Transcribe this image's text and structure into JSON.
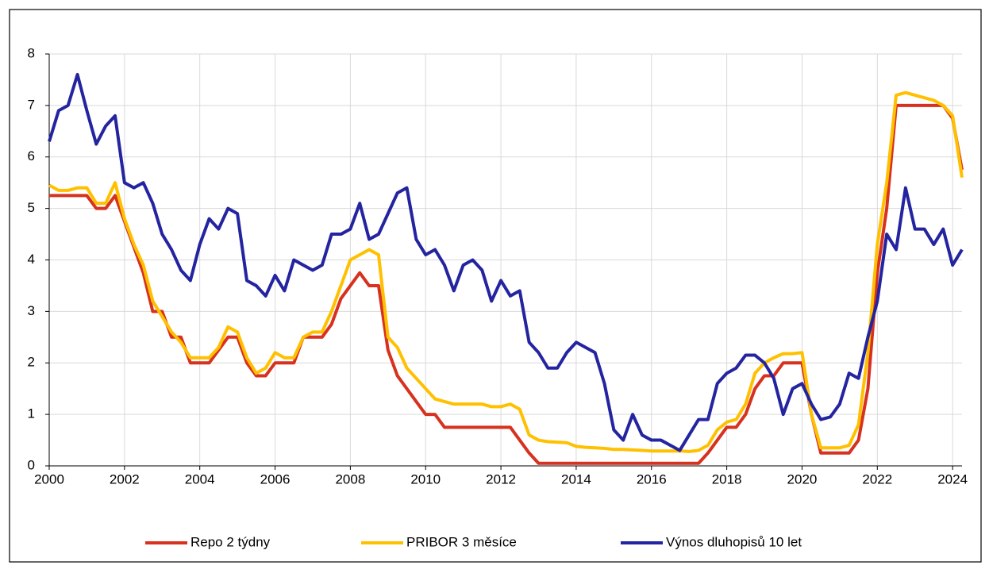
{
  "chart_data": {
    "type": "line",
    "x": [
      2000,
      2000.25,
      2000.5,
      2000.75,
      2001,
      2001.25,
      2001.5,
      2001.75,
      2002,
      2002.25,
      2002.5,
      2002.75,
      2003,
      2003.25,
      2003.5,
      2003.75,
      2004,
      2004.25,
      2004.5,
      2004.75,
      2005,
      2005.25,
      2005.5,
      2005.75,
      2006,
      2006.25,
      2006.5,
      2006.75,
      2007,
      2007.25,
      2007.5,
      2007.75,
      2008,
      2008.25,
      2008.5,
      2008.75,
      2009,
      2009.25,
      2009.5,
      2009.75,
      2010,
      2010.25,
      2010.5,
      2010.75,
      2011,
      2011.25,
      2011.5,
      2011.75,
      2012,
      2012.25,
      2012.5,
      2012.75,
      2013,
      2013.25,
      2013.5,
      2013.75,
      2014,
      2014.25,
      2014.5,
      2014.75,
      2015,
      2015.25,
      2015.5,
      2015.75,
      2016,
      2016.25,
      2016.5,
      2016.75,
      2017,
      2017.25,
      2017.5,
      2017.75,
      2018,
      2018.25,
      2018.5,
      2018.75,
      2019,
      2019.25,
      2019.5,
      2019.75,
      2020,
      2020.25,
      2020.5,
      2020.75,
      2021,
      2021.25,
      2021.5,
      2021.75,
      2022,
      2022.25,
      2022.5,
      2022.75,
      2023,
      2023.25,
      2023.5,
      2023.75,
      2024,
      2024.25
    ],
    "series": [
      {
        "name": "Repo 2 týdny",
        "color": "#d7311f",
        "values": [
          5.25,
          5.25,
          5.25,
          5.25,
          5.25,
          5.0,
          5.0,
          5.25,
          4.75,
          4.25,
          3.75,
          3.0,
          3.0,
          2.5,
          2.5,
          2.0,
          2.0,
          2.0,
          2.25,
          2.5,
          2.5,
          2.0,
          1.75,
          1.75,
          2.0,
          2.0,
          2.0,
          2.5,
          2.5,
          2.5,
          2.75,
          3.25,
          3.5,
          3.75,
          3.5,
          3.5,
          2.25,
          1.75,
          1.5,
          1.25,
          1.0,
          1.0,
          0.75,
          0.75,
          0.75,
          0.75,
          0.75,
          0.75,
          0.75,
          0.75,
          0.5,
          0.25,
          0.05,
          0.05,
          0.05,
          0.05,
          0.05,
          0.05,
          0.05,
          0.05,
          0.05,
          0.05,
          0.05,
          0.05,
          0.05,
          0.05,
          0.05,
          0.05,
          0.05,
          0.05,
          0.25,
          0.5,
          0.75,
          0.75,
          1.0,
          1.5,
          1.75,
          1.75,
          2.0,
          2.0,
          2.0,
          1.0,
          0.25,
          0.25,
          0.25,
          0.25,
          0.5,
          1.5,
          3.75,
          5.0,
          7.0,
          7.0,
          7.0,
          7.0,
          7.0,
          7.0,
          6.75,
          5.75
        ]
      },
      {
        "name": "PRIBOR 3 měsíce",
        "color": "#ffc000",
        "values": [
          5.45,
          5.35,
          5.35,
          5.4,
          5.4,
          5.1,
          5.1,
          5.5,
          4.8,
          4.3,
          3.9,
          3.2,
          2.9,
          2.6,
          2.4,
          2.1,
          2.1,
          2.1,
          2.3,
          2.7,
          2.6,
          2.1,
          1.8,
          1.9,
          2.2,
          2.1,
          2.1,
          2.5,
          2.6,
          2.6,
          3.0,
          3.5,
          4.0,
          4.1,
          4.2,
          4.1,
          2.5,
          2.3,
          1.9,
          1.7,
          1.5,
          1.3,
          1.25,
          1.2,
          1.2,
          1.2,
          1.2,
          1.15,
          1.15,
          1.2,
          1.1,
          0.6,
          0.5,
          0.47,
          0.46,
          0.45,
          0.38,
          0.36,
          0.35,
          0.34,
          0.32,
          0.32,
          0.31,
          0.3,
          0.29,
          0.29,
          0.29,
          0.29,
          0.28,
          0.3,
          0.4,
          0.7,
          0.85,
          0.9,
          1.2,
          1.8,
          2.0,
          2.1,
          2.18,
          2.18,
          2.2,
          1.0,
          0.35,
          0.35,
          0.35,
          0.4,
          0.8,
          2.2,
          4.3,
          5.5,
          7.2,
          7.25,
          7.2,
          7.15,
          7.1,
          7.0,
          6.8,
          5.6
        ]
      },
      {
        "name": "Výnos dluhopisů 10 let",
        "color": "#2424a0",
        "values": [
          6.3,
          6.9,
          7.0,
          7.6,
          6.9,
          6.25,
          6.6,
          6.8,
          5.5,
          5.4,
          5.5,
          5.1,
          4.5,
          4.2,
          3.8,
          3.6,
          4.3,
          4.8,
          4.6,
          5.0,
          4.9,
          3.6,
          3.5,
          3.3,
          3.7,
          3.4,
          4.0,
          3.9,
          3.8,
          3.9,
          4.5,
          4.5,
          4.6,
          5.1,
          4.4,
          4.5,
          4.9,
          5.3,
          5.4,
          4.4,
          4.1,
          4.2,
          3.9,
          3.4,
          3.9,
          4.0,
          3.8,
          3.2,
          3.6,
          3.3,
          3.4,
          2.4,
          2.2,
          1.9,
          1.9,
          2.2,
          2.4,
          2.3,
          2.2,
          1.6,
          0.7,
          0.5,
          1.0,
          0.6,
          0.5,
          0.5,
          0.4,
          0.3,
          0.6,
          0.9,
          0.9,
          1.6,
          1.8,
          1.9,
          2.15,
          2.15,
          2.0,
          1.7,
          1.0,
          1.5,
          1.6,
          1.2,
          0.9,
          0.95,
          1.2,
          1.8,
          1.7,
          2.5,
          3.2,
          4.5,
          4.2,
          5.4,
          4.6,
          4.6,
          4.3,
          4.6,
          3.9,
          4.2
        ]
      }
    ],
    "xlim": [
      2000,
      2024.25
    ],
    "xticks": [
      2000,
      2002,
      2004,
      2006,
      2008,
      2010,
      2012,
      2014,
      2016,
      2018,
      2020,
      2022,
      2024
    ],
    "ylim": [
      0,
      8
    ],
    "yticks": [
      0,
      1,
      2,
      3,
      4,
      5,
      6,
      7,
      8
    ],
    "grid": true
  }
}
